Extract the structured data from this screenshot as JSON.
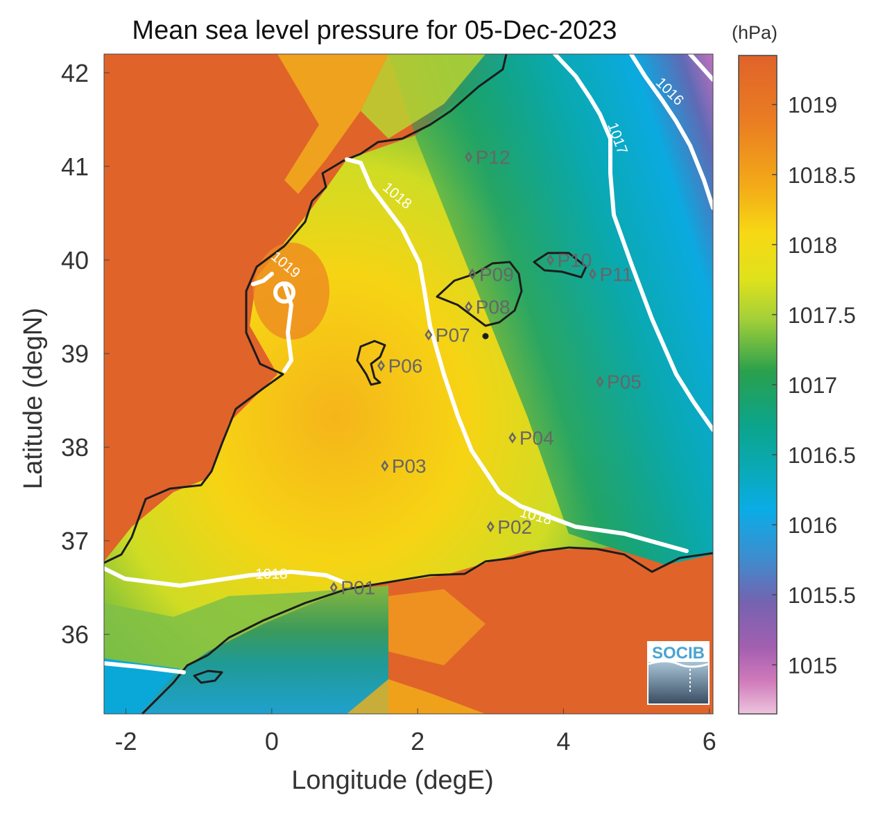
{
  "title": "Mean sea level pressure for 05-Dec-2023",
  "colorbar": {
    "unit_label": "(hPa)",
    "ticks": [
      "1019",
      "1018.5",
      "1018",
      "1017.5",
      "1017",
      "1016.5",
      "1016",
      "1015.5",
      "1015"
    ],
    "range": [
      1014.65,
      1019.35
    ],
    "colors_top_to_bottom": [
      "#e0632a",
      "#f19a1e",
      "#f6d615",
      "#b7d334",
      "#1f9a4d",
      "#0aa9a9",
      "#0aa9e3",
      "#6f6ab4",
      "#a762b0",
      "#e3a6cb"
    ]
  },
  "axes": {
    "x_label": "Longitude (degE)",
    "y_label": "Latitude (degN)",
    "x_ticks": [
      "-2",
      "0",
      "2",
      "4",
      "6"
    ],
    "y_ticks": [
      "42",
      "41",
      "40",
      "39",
      "38",
      "37",
      "36"
    ],
    "x_range": [
      -2.3,
      6.05
    ],
    "y_range": [
      35.15,
      42.2
    ]
  },
  "contour_labels": [
    "1019",
    "1018",
    "1018",
    "1018",
    "1017",
    "1016"
  ],
  "points": [
    {
      "name": "P01",
      "lon": 0.85,
      "lat": 36.5
    },
    {
      "name": "P02",
      "lon": 3.0,
      "lat": 37.15
    },
    {
      "name": "P03",
      "lon": 1.55,
      "lat": 37.8
    },
    {
      "name": "P04",
      "lon": 3.3,
      "lat": 38.1
    },
    {
      "name": "P05",
      "lon": 4.5,
      "lat": 38.7
    },
    {
      "name": "P06",
      "lon": 1.5,
      "lat": 38.87
    },
    {
      "name": "P07",
      "lon": 2.15,
      "lat": 39.2
    },
    {
      "name": "P08",
      "lon": 2.7,
      "lat": 39.5
    },
    {
      "name": "P09",
      "lon": 2.75,
      "lat": 39.85
    },
    {
      "name": "P10",
      "lon": 3.82,
      "lat": 40.0
    },
    {
      "name": "P11",
      "lon": 4.4,
      "lat": 39.85
    },
    {
      "name": "P12",
      "lon": 2.7,
      "lat": 41.1
    }
  ],
  "logo": {
    "text": "SOCIB"
  },
  "colors": {
    "land": "#e0632a",
    "coast": "#1c1c1c",
    "contour": "#ffffff",
    "marker": "#666666"
  }
}
